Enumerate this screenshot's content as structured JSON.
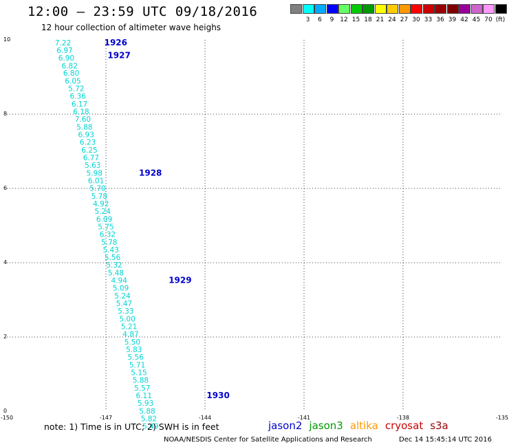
{
  "title": "12:00 – 23:59 UTC 09/18/2016",
  "subtitle": "12 hour collection of altimeter wave heighs",
  "colorbar": {
    "unit": "(ft)",
    "colors": [
      "#808080",
      "#00ffff",
      "#00aaff",
      "#0000ff",
      "#66ff66",
      "#00cc00",
      "#009900",
      "#ffff00",
      "#ffcc00",
      "#ff9900",
      "#ff0000",
      "#cc0000",
      "#990000",
      "#800000",
      "#990099",
      "#cc66cc",
      "#ff99ff",
      "#000000"
    ],
    "labels": [
      "3",
      "6",
      "9",
      "12",
      "15",
      "18",
      "21",
      "24",
      "27",
      "30",
      "33",
      "36",
      "39",
      "42",
      "45",
      "70"
    ]
  },
  "axes": {
    "x_ticks": [
      "-150",
      "-147",
      "-144",
      "-141",
      "-138",
      "-135"
    ],
    "y_ticks": [
      "10",
      "8",
      "6",
      "4",
      "2",
      "0"
    ],
    "lon_range": [
      -150,
      -135
    ],
    "lat_range": [
      0,
      10
    ],
    "grid": true
  },
  "swh_color": "#00d4d4",
  "track": [
    {
      "lon": -148.3,
      "lat": 9.93,
      "swh": "7.22"
    },
    {
      "lon": -148.25,
      "lat": 9.72,
      "swh": "6.97"
    },
    {
      "lon": -148.2,
      "lat": 9.52,
      "swh": "6.90"
    },
    {
      "lon": -148.1,
      "lat": 9.31,
      "swh": "6.82"
    },
    {
      "lon": -148.05,
      "lat": 9.11,
      "swh": "6.80"
    },
    {
      "lon": -148.0,
      "lat": 8.9,
      "swh": "6.05"
    },
    {
      "lon": -147.9,
      "lat": 8.69,
      "swh": "5.72"
    },
    {
      "lon": -147.85,
      "lat": 8.49,
      "swh": "6.36"
    },
    {
      "lon": -147.8,
      "lat": 8.28,
      "swh": "6.17"
    },
    {
      "lon": -147.75,
      "lat": 8.07,
      "swh": "6.18"
    },
    {
      "lon": -147.7,
      "lat": 7.87,
      "swh": "7.60"
    },
    {
      "lon": -147.65,
      "lat": 7.66,
      "swh": "5.88"
    },
    {
      "lon": -147.6,
      "lat": 7.45,
      "swh": "6.93"
    },
    {
      "lon": -147.55,
      "lat": 7.25,
      "swh": "6.23"
    },
    {
      "lon": -147.5,
      "lat": 7.04,
      "swh": "6.25"
    },
    {
      "lon": -147.45,
      "lat": 6.83,
      "swh": "6.77"
    },
    {
      "lon": -147.4,
      "lat": 6.63,
      "swh": "5.63"
    },
    {
      "lon": -147.35,
      "lat": 6.42,
      "swh": "5.98"
    },
    {
      "lon": -147.3,
      "lat": 6.21,
      "swh": "6.01"
    },
    {
      "lon": -147.25,
      "lat": 6.01,
      "swh": "5.70"
    },
    {
      "lon": -147.2,
      "lat": 5.8,
      "swh": "5.78"
    },
    {
      "lon": -147.15,
      "lat": 5.59,
      "swh": "4.92"
    },
    {
      "lon": -147.1,
      "lat": 5.39,
      "swh": "5.24"
    },
    {
      "lon": -147.05,
      "lat": 5.18,
      "swh": "6.09"
    },
    {
      "lon": -147.0,
      "lat": 4.97,
      "swh": "5.75"
    },
    {
      "lon": -146.95,
      "lat": 4.77,
      "swh": "6.32"
    },
    {
      "lon": -146.9,
      "lat": 4.56,
      "swh": "5.78"
    },
    {
      "lon": -146.85,
      "lat": 4.35,
      "swh": "5.43"
    },
    {
      "lon": -146.8,
      "lat": 4.15,
      "swh": "5.56"
    },
    {
      "lon": -146.75,
      "lat": 3.94,
      "swh": "5.32"
    },
    {
      "lon": -146.7,
      "lat": 3.73,
      "swh": "5.48"
    },
    {
      "lon": -146.6,
      "lat": 3.53,
      "swh": "4.94"
    },
    {
      "lon": -146.55,
      "lat": 3.32,
      "swh": "5.09"
    },
    {
      "lon": -146.5,
      "lat": 3.11,
      "swh": "5.24"
    },
    {
      "lon": -146.45,
      "lat": 2.91,
      "swh": "5.47"
    },
    {
      "lon": -146.4,
      "lat": 2.7,
      "swh": "5.33"
    },
    {
      "lon": -146.35,
      "lat": 2.49,
      "swh": "5.00"
    },
    {
      "lon": -146.3,
      "lat": 2.29,
      "swh": "5.21"
    },
    {
      "lon": -146.25,
      "lat": 2.08,
      "swh": "4.87"
    },
    {
      "lon": -146.2,
      "lat": 1.87,
      "swh": "5.50"
    },
    {
      "lon": -146.15,
      "lat": 1.67,
      "swh": "5.83"
    },
    {
      "lon": -146.1,
      "lat": 1.46,
      "swh": "5.56"
    },
    {
      "lon": -146.05,
      "lat": 1.25,
      "swh": "5.71"
    },
    {
      "lon": -146.0,
      "lat": 1.05,
      "swh": "5.15"
    },
    {
      "lon": -145.95,
      "lat": 0.84,
      "swh": "5.88"
    },
    {
      "lon": -145.9,
      "lat": 0.63,
      "swh": "5.57"
    },
    {
      "lon": -145.85,
      "lat": 0.43,
      "swh": "6.11"
    },
    {
      "lon": -145.8,
      "lat": 0.22,
      "swh": "5.93"
    },
    {
      "lon": -145.75,
      "lat": 0.01,
      "swh": "5.88"
    },
    {
      "lon": -145.7,
      "lat": -0.19,
      "swh": "5.82"
    },
    {
      "lon": -145.65,
      "lat": -0.4,
      "swh": "5.49"
    }
  ],
  "orbits": [
    {
      "label": "1926",
      "lon": -147.05,
      "lat": 9.93
    },
    {
      "label": "1927",
      "lon": -146.95,
      "lat": 9.58
    },
    {
      "label": "1928",
      "lon": -146.0,
      "lat": 6.42
    },
    {
      "label": "1929",
      "lon": -145.1,
      "lat": 3.53
    },
    {
      "label": "1930",
      "lon": -143.95,
      "lat": 0.43
    }
  ],
  "note": "note: 1) Time is in UTC; 2) SWH is in feet",
  "satellites": [
    {
      "name": "jason2",
      "color": "#0000cc"
    },
    {
      "name": "jason3",
      "color": "#009900"
    },
    {
      "name": "altika",
      "color": "#ff9900"
    },
    {
      "name": "cryosat",
      "color": "#cc0000"
    },
    {
      "name": "s3a",
      "color": "#990000"
    }
  ],
  "credit": "NOAA/NESDIS Center for Satellite Applications and Research",
  "timestamp": "Dec 14 15:45:14 UTC 2016"
}
